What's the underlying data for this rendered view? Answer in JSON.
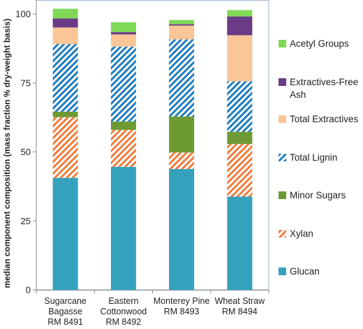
{
  "chart_data": {
    "type": "bar",
    "stacked": true,
    "title": "",
    "xlabel": "",
    "ylabel": "median component composition (mass fraction % dry-weight basis)",
    "ylim": [
      0,
      100
    ],
    "yticks": [
      "0",
      "25",
      "50",
      "75",
      "100"
    ],
    "categories": [
      [
        "Sugarcane",
        "Bagasse",
        "RM 8491"
      ],
      [
        "Eastern",
        "Cottonwood",
        "RM 8492"
      ],
      [
        "Monterey Pine",
        "RM 8493"
      ],
      [
        "Wheat Straw",
        "RM 8494"
      ]
    ],
    "series": [
      {
        "name": "Glucan",
        "color": "#35a2bd",
        "pattern": "solid",
        "values": [
          40.6,
          44.6,
          43.8,
          33.8
        ]
      },
      {
        "name": "Xylan",
        "color": "#f07c3c",
        "pattern": "diagonal-hatch",
        "values": [
          22.0,
          13.4,
          6.0,
          19.1
        ]
      },
      {
        "name": "Minor Sugars",
        "color": "#6e9a33",
        "pattern": "solid",
        "values": [
          2.0,
          3.0,
          13.0,
          4.4
        ]
      },
      {
        "name": "Total Lignin",
        "color": "#1f7dbf",
        "pattern": "diagonal-hatch",
        "values": [
          24.5,
          27.2,
          28.0,
          18.3
        ]
      },
      {
        "name": "Total Extractives",
        "color": "#fac597",
        "pattern": "solid",
        "values": [
          6.0,
          4.4,
          5.0,
          16.7
        ]
      },
      {
        "name": "Extractives-Free Ash",
        "color": "#6a3b86",
        "pattern": "solid",
        "values": [
          3.3,
          0.8,
          0.5,
          6.8
        ]
      },
      {
        "name": "Acetyl Groups",
        "color": "#7fd957",
        "pattern": "solid",
        "values": [
          3.5,
          3.6,
          1.5,
          2.3
        ]
      }
    ],
    "legend": {
      "position": "right",
      "entries": [
        "Acetyl Groups",
        "Extractives-Free Ash",
        "Total Extractives",
        "Total Lignin",
        "Minor Sugars",
        "Xylan",
        "Glucan"
      ]
    },
    "grid": false
  }
}
